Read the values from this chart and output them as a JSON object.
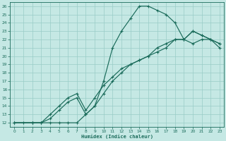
{
  "xlabel": "Humidex (Indice chaleur)",
  "xlim": [
    -0.5,
    23.5
  ],
  "ylim": [
    11.5,
    26.5
  ],
  "xticks": [
    0,
    1,
    2,
    3,
    4,
    5,
    6,
    7,
    8,
    9,
    10,
    11,
    12,
    13,
    14,
    15,
    16,
    17,
    18,
    19,
    20,
    21,
    22,
    23
  ],
  "yticks": [
    12,
    13,
    14,
    15,
    16,
    17,
    18,
    19,
    20,
    21,
    22,
    23,
    24,
    25,
    26
  ],
  "bg_color": "#c5e8e4",
  "line_color": "#1a6b5a",
  "grid_color": "#99ccc7",
  "line1_x": [
    0,
    1,
    2,
    3,
    4,
    5,
    6,
    7,
    8,
    9,
    10,
    11,
    12,
    13,
    14,
    15,
    16,
    17,
    18,
    19,
    20,
    21,
    22,
    23
  ],
  "line1_y": [
    12,
    12,
    12,
    12,
    12,
    12,
    12,
    12,
    13,
    14,
    17,
    21,
    23,
    24.5,
    26,
    26,
    25.5,
    25,
    24,
    22,
    21.5,
    22,
    22,
    21
  ],
  "line2_x": [
    0,
    2,
    3,
    4,
    5,
    6,
    7,
    8,
    9,
    10,
    11,
    12,
    13,
    14,
    15,
    16,
    17,
    18,
    19,
    20,
    21,
    22,
    23
  ],
  "line2_y": [
    12,
    12,
    12,
    13,
    14,
    15,
    15.5,
    13.5,
    15,
    16.5,
    17.5,
    18.5,
    19,
    19.5,
    20,
    21,
    21.5,
    22,
    22,
    23,
    22.5,
    22,
    21.5
  ],
  "line3_x": [
    0,
    2,
    3,
    4,
    5,
    6,
    7,
    8,
    9,
    10,
    11,
    12,
    13,
    14,
    15,
    16,
    17,
    18,
    19,
    20,
    21,
    22,
    23
  ],
  "line3_y": [
    12,
    12,
    12,
    12.5,
    13.5,
    14.5,
    15,
    13,
    14,
    15.5,
    17,
    18,
    19,
    19.5,
    20,
    20.5,
    21,
    22,
    22,
    23,
    22.5,
    22,
    21.5
  ]
}
